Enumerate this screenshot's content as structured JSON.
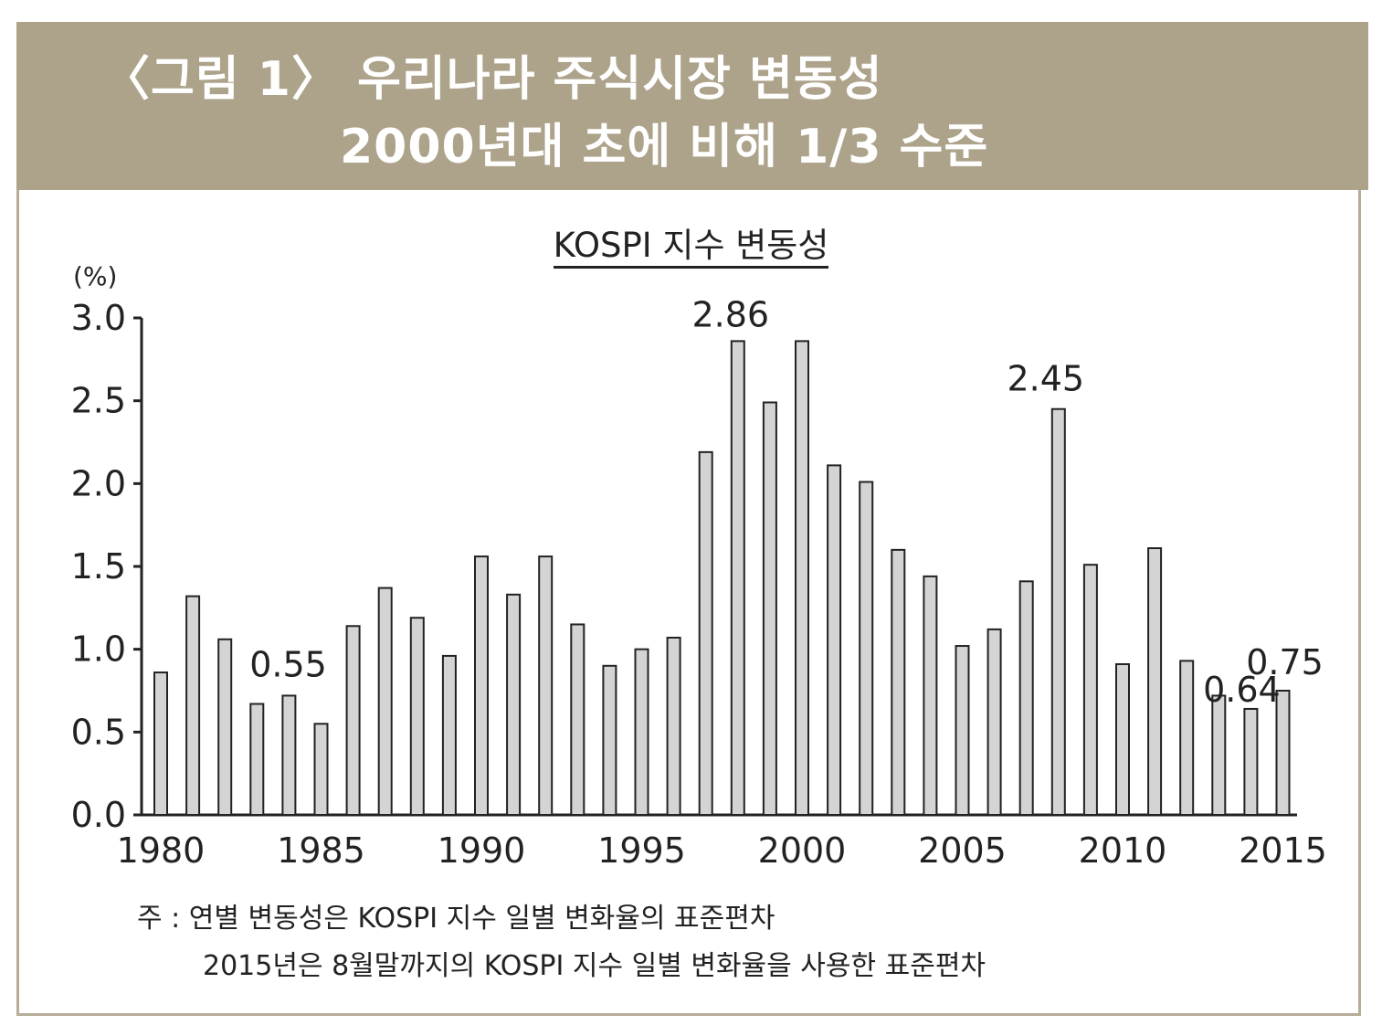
{
  "figure": {
    "title_line1": "〈그림 1〉 우리나라 주식시장 변동성",
    "title_line2": "2000년대 초에 비해 1/3 수준"
  },
  "colors": {
    "banner": "#ada38b",
    "bar_fill": "#d4d4d4",
    "bar_stroke": "#222222"
  },
  "chart_data": {
    "type": "bar",
    "title": "KOSPI 지수 변동성",
    "ylabel": "(%)",
    "xlabel": "",
    "ylim": [
      0,
      3.0
    ],
    "yticks": [
      "0.0",
      "0.5",
      "1.0",
      "1.5",
      "2.0",
      "2.5",
      "3.0"
    ],
    "xtick_labels": [
      "1980",
      "1985",
      "1990",
      "1995",
      "2000",
      "2005",
      "2010",
      "2015"
    ],
    "categories": [
      "1980",
      "1981",
      "1982",
      "1983",
      "1984",
      "1985",
      "1986",
      "1987",
      "1988",
      "1989",
      "1990",
      "1991",
      "1992",
      "1993",
      "1994",
      "1995",
      "1996",
      "1997",
      "1998",
      "1999",
      "2000",
      "2001",
      "2002",
      "2003",
      "2004",
      "2005",
      "2006",
      "2007",
      "2008",
      "2009",
      "2010",
      "2011",
      "2012",
      "2013",
      "2014",
      "2015"
    ],
    "values": [
      0.86,
      1.32,
      1.06,
      0.67,
      0.72,
      0.55,
      1.14,
      1.37,
      1.19,
      0.96,
      1.56,
      1.33,
      1.56,
      1.15,
      0.9,
      1.0,
      1.07,
      2.19,
      2.86,
      2.49,
      2.86,
      2.11,
      2.01,
      1.6,
      1.44,
      1.02,
      1.12,
      1.41,
      2.45,
      1.51,
      0.91,
      1.61,
      0.93,
      0.72,
      0.64,
      0.75
    ],
    "annotations": [
      {
        "category": "1985",
        "text": "0.55"
      },
      {
        "category": "1998",
        "text": "2.86"
      },
      {
        "category": "2008",
        "text": "2.45"
      },
      {
        "category": "2014",
        "text": "0.64"
      },
      {
        "category": "2015",
        "text": "0.75"
      }
    ]
  },
  "notes": {
    "line1": "주 : 연별 변동성은 KOSPI 지수 일별 변화율의 표준편차",
    "line2": "2015년은 8월말까지의 KOSPI 지수 일별 변화율을 사용한 표준편차"
  }
}
